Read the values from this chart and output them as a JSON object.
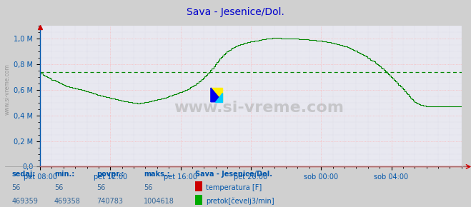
{
  "title": "Sava - Jesenice/Dol.",
  "title_color": "#0000cc",
  "bg_color": "#d0d0d0",
  "plot_bg_color": "#e8e8f0",
  "grid_color_major": "#ffaaaa",
  "grid_color_minor": "#ccccdd",
  "line_color": "#008800",
  "avg_line_color": "#008800",
  "avg_line_value": 740783,
  "x_min": 0,
  "x_max": 288,
  "y_min": 0,
  "y_max": 1100000,
  "yticks": [
    0,
    200000,
    400000,
    600000,
    800000,
    1000000
  ],
  "ytick_labels": [
    "0,0",
    "0,2 M",
    "0,4 M",
    "0,6 M",
    "0,8 M",
    "1,0 M"
  ],
  "xtick_positions": [
    0,
    48,
    96,
    144,
    192,
    240
  ],
  "xtick_labels": [
    "pet 08:00",
    "pet 12:00",
    "pet 16:00",
    "pet 20:00",
    "sob 00:00",
    "sob 04:00"
  ],
  "watermark": "www.si-vreme.com",
  "ylabel_text": "www.si-vreme.com",
  "footer_labels": [
    "sedaj:",
    "min.:",
    "povpr.:",
    "maks.:"
  ],
  "footer_values_temp": [
    "56",
    "56",
    "56",
    "56"
  ],
  "footer_values_flow": [
    "469359",
    "469358",
    "740783",
    "1004618"
  ],
  "legend_station": "Sava - Jesenice/Dol.",
  "legend_temp": "temperatura [F]",
  "legend_flow": "pretok[čevelj3/min]",
  "flow_data": [
    730000,
    725000,
    718000,
    712000,
    705000,
    698000,
    692000,
    686000,
    680000,
    675000,
    670000,
    665000,
    660000,
    655000,
    650000,
    645000,
    640000,
    635000,
    630000,
    626000,
    623000,
    620000,
    618000,
    615000,
    612000,
    609000,
    606000,
    603000,
    600000,
    597000,
    594000,
    590000,
    587000,
    583000,
    580000,
    577000,
    573000,
    570000,
    567000,
    563000,
    560000,
    557000,
    554000,
    550000,
    547000,
    544000,
    541000,
    538000,
    535000,
    533000,
    530000,
    527000,
    525000,
    522000,
    519000,
    517000,
    515000,
    512000,
    510000,
    508000,
    506000,
    504000,
    502000,
    500000,
    498000,
    497000,
    496000,
    496000,
    497000,
    498000,
    500000,
    502000,
    504000,
    506000,
    508000,
    510000,
    513000,
    516000,
    519000,
    522000,
    525000,
    528000,
    531000,
    534000,
    537000,
    540000,
    544000,
    548000,
    552000,
    556000,
    560000,
    564000,
    568000,
    572000,
    576000,
    580000,
    585000,
    590000,
    596000,
    601000,
    607000,
    613000,
    619000,
    626000,
    633000,
    640000,
    648000,
    656000,
    664000,
    673000,
    683000,
    693000,
    704000,
    716000,
    728000,
    741000,
    755000,
    769000,
    784000,
    799000,
    815000,
    829000,
    843000,
    856000,
    868000,
    879000,
    889000,
    898000,
    906000,
    914000,
    921000,
    927000,
    933000,
    939000,
    944000,
    949000,
    954000,
    958000,
    962000,
    966000,
    969000,
    972000,
    975000,
    977000,
    979000,
    981000,
    983000,
    985000,
    987000,
    989000,
    991000,
    993000,
    995000,
    997000,
    999000,
    1001000,
    1002000,
    1003000,
    1004000,
    1004618,
    1004618,
    1004500,
    1004200,
    1003800,
    1003400,
    1003000,
    1002600,
    1002200,
    1001800,
    1001400,
    1001000,
    1000500,
    1000000,
    999400,
    998800,
    998200,
    997600,
    997000,
    996300,
    995600,
    994800,
    994000,
    993100,
    992200,
    991200,
    990100,
    989000,
    987800,
    986600,
    985300,
    983900,
    982400,
    980800,
    979100,
    977300,
    975400,
    973400,
    971200,
    968900,
    966500,
    963900,
    961200,
    958300,
    955200,
    951900,
    948500,
    945000,
    941200,
    937200,
    933000,
    928600,
    924000,
    919200,
    914200,
    908900,
    903400,
    897700,
    891800,
    885700,
    879300,
    872700,
    865900,
    858800,
    851500,
    843900,
    836100,
    828100,
    819800,
    811200,
    802400,
    793300,
    784000,
    774400,
    764500,
    754400,
    744100,
    733500,
    722700,
    711700,
    700400,
    688900,
    677200,
    665300,
    653200,
    640900,
    628400,
    615700,
    602900,
    590000,
    577000,
    564000,
    551000,
    538000,
    525000,
    514000,
    505000,
    498000,
    492000,
    487000,
    483000,
    480000,
    477000,
    475000,
    473000,
    471500,
    470500,
    470000,
    469800,
    469600,
    469500,
    469400,
    469359,
    469359,
    469359,
    469359,
    469359,
    469359,
    469359,
    469359,
    469359,
    469359,
    469359,
    469359,
    469359,
    469359,
    469359,
    469359,
    469359
  ]
}
